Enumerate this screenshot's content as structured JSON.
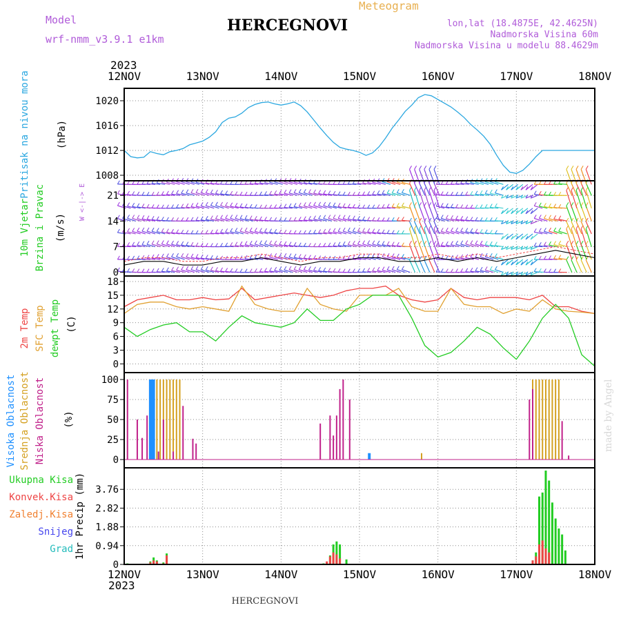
{
  "header": {
    "model_label": "Model",
    "model_name": "wrf-nmm_v3.9.1 e1km",
    "station": "HERCEGNOVI",
    "chart_title": "Meteogram",
    "lonlat": "lon,lat (18.4875E, 42.4625N)",
    "elevation": "Nadmorska Visina 60m",
    "model_elevation": "Nadmorska Visina u modelu 88.4629m",
    "footer_station": "HERCEGNOVI",
    "credit": "made by Angel"
  },
  "time_axis": {
    "year": "2023",
    "ticks": [
      "12NOV",
      "13NOV",
      "14NOV",
      "15NOV",
      "16NOV",
      "17NOV",
      "18NOV"
    ],
    "start_hour": 0,
    "end_hour": 144
  },
  "colors": {
    "pressure": "#2aa7e0",
    "temp2m": "#ee4444",
    "sfc_temp": "#e0a030",
    "dewpoint": "#22cc22",
    "high_cloud": "#1e90ff",
    "mid_cloud": "#d4a020",
    "low_cloud": "#c0208a",
    "total_precip": "#22cc22",
    "conv_precip": "#ee4444",
    "frozen_precip": "#f08030",
    "snow": "#4444ee",
    "hail": "#22bbbb",
    "wind_label": "#22cc22"
  },
  "chart_data": [
    {
      "type": "line",
      "name": "pressure",
      "ylabel": "Pritisak na nivou mora",
      "unit": "(hPa)",
      "ylim": [
        1008,
        1022
      ],
      "yticks": [
        1008,
        1012,
        1016,
        1020
      ],
      "x_hours": [
        0,
        2,
        4,
        6,
        8,
        10,
        12,
        14,
        16,
        18,
        20,
        22,
        24,
        26,
        28,
        30,
        32,
        34,
        36,
        38,
        40,
        42,
        44,
        46,
        48,
        50,
        52,
        54,
        56,
        58,
        60,
        62,
        64,
        66,
        68,
        70,
        72,
        74,
        76,
        78,
        80,
        82,
        84,
        86,
        88,
        90,
        92,
        94,
        96,
        98,
        100,
        102,
        104,
        106,
        108,
        110,
        112,
        114,
        116,
        118,
        120,
        122,
        124,
        126,
        128,
        130,
        132,
        134,
        136,
        138,
        140,
        142,
        144
      ],
      "values": [
        1012.0,
        1011.0,
        1010.8,
        1010.9,
        1011.8,
        1011.5,
        1011.3,
        1011.8,
        1012.0,
        1012.3,
        1012.9,
        1013.2,
        1013.5,
        1014.1,
        1015.0,
        1016.5,
        1017.2,
        1017.4,
        1018.0,
        1018.9,
        1019.4,
        1019.7,
        1019.8,
        1019.5,
        1019.3,
        1019.5,
        1019.8,
        1019.2,
        1018.2,
        1016.9,
        1015.6,
        1014.4,
        1013.3,
        1012.5,
        1012.2,
        1012.0,
        1011.7,
        1011.2,
        1011.6,
        1012.6,
        1014.0,
        1015.6,
        1016.9,
        1018.3,
        1019.3,
        1020.5,
        1021.0,
        1020.8,
        1020.2,
        1019.6,
        1019.0,
        1018.2,
        1017.3,
        1016.2,
        1015.3,
        1014.3,
        1013.0,
        1011.2,
        1009.6,
        1008.5,
        1008.3,
        1008.8,
        1009.8,
        1011.0,
        1012.0,
        1012.0,
        1012.0,
        1012.0,
        1012.0,
        1012.0,
        1012.0,
        1012.0,
        1012.0
      ]
    },
    {
      "type": "line",
      "name": "wind",
      "ylabel": "10m Vjetar Brzina i Pravac",
      "unit": "(m/s)",
      "compass": "W <-|-> E",
      "ylim": [
        -1,
        25
      ],
      "yticks": [
        0,
        7,
        14,
        21
      ],
      "series": [
        {
          "name": "speed",
          "x_hours": [
            0,
            6,
            12,
            18,
            24,
            30,
            36,
            42,
            48,
            54,
            60,
            66,
            72,
            78,
            84,
            90,
            96,
            102,
            108,
            114,
            120,
            126,
            132,
            138,
            144
          ],
          "values": [
            2,
            3,
            3,
            2,
            2,
            3,
            3,
            4,
            3,
            2,
            3,
            3,
            4,
            4,
            3,
            3,
            4,
            3,
            4,
            3,
            4,
            5,
            6,
            5,
            4
          ]
        }
      ]
    },
    {
      "type": "line",
      "name": "temperature",
      "ylabel": "2m Temp SFC Temp dewpt Temp",
      "unit": "(C)",
      "ylim": [
        -1,
        18
      ],
      "yticks": [
        0,
        3,
        6,
        9,
        12,
        15,
        18
      ],
      "x_hours": [
        0,
        4,
        8,
        12,
        16,
        20,
        24,
        28,
        32,
        36,
        40,
        44,
        48,
        52,
        56,
        60,
        64,
        68,
        72,
        76,
        80,
        84,
        88,
        92,
        96,
        100,
        104,
        108,
        112,
        116,
        120,
        124,
        128,
        132,
        136,
        140,
        144
      ],
      "series": [
        {
          "name": "2m Temp",
          "values": [
            12.5,
            14,
            14.5,
            15,
            14,
            14,
            14.5,
            14,
            14.2,
            16.5,
            14,
            14.5,
            15,
            15.5,
            15,
            14.5,
            15,
            16,
            16.5,
            16.5,
            17,
            15,
            14,
            13.5,
            14,
            16.5,
            14.5,
            14,
            14.5,
            14.5,
            14.5,
            14,
            15,
            12.5,
            12.5,
            11.5,
            11
          ]
        },
        {
          "name": "SFC Temp",
          "values": [
            11,
            13,
            13.5,
            13.5,
            12.5,
            12,
            12.5,
            12,
            11.5,
            17,
            13,
            12,
            11.5,
            11.5,
            16.5,
            13,
            12,
            11.5,
            15,
            15,
            15,
            16.5,
            12.5,
            11.5,
            11.5,
            16.5,
            13,
            12.5,
            12.5,
            11,
            12,
            11.5,
            14,
            12,
            11.5,
            11.3,
            11
          ]
        },
        {
          "name": "dewpt Temp",
          "values": [
            8,
            6,
            7.5,
            8.5,
            9,
            7,
            7,
            5,
            8,
            10.5,
            9,
            8.5,
            8,
            9,
            12,
            9.5,
            9.5,
            12,
            13,
            15,
            15,
            15,
            10,
            4,
            1.5,
            2.5,
            5,
            8,
            6.5,
            3.5,
            1,
            5,
            10,
            13,
            10,
            2,
            -0.5
          ]
        }
      ]
    },
    {
      "type": "bar",
      "name": "cloud",
      "ylabel": "Visoka Oblacnost Srednja Oblacnost Niska Oblacnost",
      "unit": "(%)",
      "ylim": [
        0,
        100
      ],
      "yticks": [
        0,
        25,
        50,
        75,
        100
      ],
      "series": [
        {
          "name": "Visoka Oblacnost",
          "x_hours": [
            8,
            8.5,
            9,
            75
          ],
          "values": [
            100,
            100,
            100,
            8
          ]
        },
        {
          "name": "Srednja Oblacnost",
          "x_hours": [
            10,
            11,
            12,
            13,
            14,
            15,
            16,
            17,
            91,
            125,
            126,
            127,
            128,
            129,
            130,
            131,
            132,
            133
          ],
          "values": [
            100,
            100,
            100,
            100,
            100,
            100,
            100,
            100,
            8,
            100,
            100,
            100,
            100,
            100,
            100,
            100,
            100,
            100
          ]
        },
        {
          "name": "Niska Oblacnost",
          "x_hours": [
            1,
            4,
            5.5,
            7,
            10.5,
            12,
            15,
            18,
            21,
            22,
            60,
            63,
            64,
            65,
            66,
            67,
            69,
            124,
            125,
            134,
            136
          ],
          "values": [
            100,
            50,
            27,
            55,
            10,
            50,
            10,
            67,
            26,
            20,
            45,
            55,
            30,
            55,
            88,
            100,
            75,
            75,
            88,
            48,
            5
          ]
        }
      ]
    },
    {
      "type": "bar",
      "name": "precipitation",
      "ylabel": "1hr Precip",
      "unit": "(mm)",
      "ylim": [
        0,
        4.7
      ],
      "yticks": [
        0,
        0.94,
        1.88,
        2.82,
        3.76
      ],
      "legend": [
        "Ukupna Kisa",
        "Konvek.Kisa",
        "Zaledj.Kisa",
        "Snijeg",
        "Grad"
      ],
      "series": [
        {
          "name": "Ukupna Kisa",
          "x_hours": [
            1,
            2,
            3,
            5,
            6,
            7,
            8,
            9,
            10,
            11,
            12,
            13,
            56,
            61,
            62,
            63,
            64,
            65,
            66,
            68,
            118,
            124,
            125,
            126,
            127,
            128,
            129,
            130,
            131,
            132,
            133,
            134,
            135
          ],
          "values": [
            0.05,
            0,
            0,
            0,
            0,
            0,
            0.15,
            0.35,
            0.2,
            0,
            0.1,
            0.55,
            0,
            0.05,
            0,
            0.45,
            1.0,
            1.15,
            1.0,
            0.25,
            0,
            0,
            0.2,
            0.6,
            3.4,
            3.6,
            4.7,
            4.2,
            3.1,
            2.3,
            1.8,
            1.5,
            0.7
          ]
        },
        {
          "name": "Konvek.Kisa",
          "x_hours": [
            8,
            9,
            10,
            12,
            13,
            62,
            63,
            64,
            65,
            66,
            125,
            126,
            127,
            128,
            129,
            130
          ],
          "values": [
            0.1,
            0.2,
            0.15,
            0.05,
            0.45,
            0.15,
            0.4,
            0.6,
            0.5,
            0.3,
            0.2,
            0.4,
            1.0,
            1.2,
            0.8,
            0.6
          ]
        }
      ]
    }
  ]
}
